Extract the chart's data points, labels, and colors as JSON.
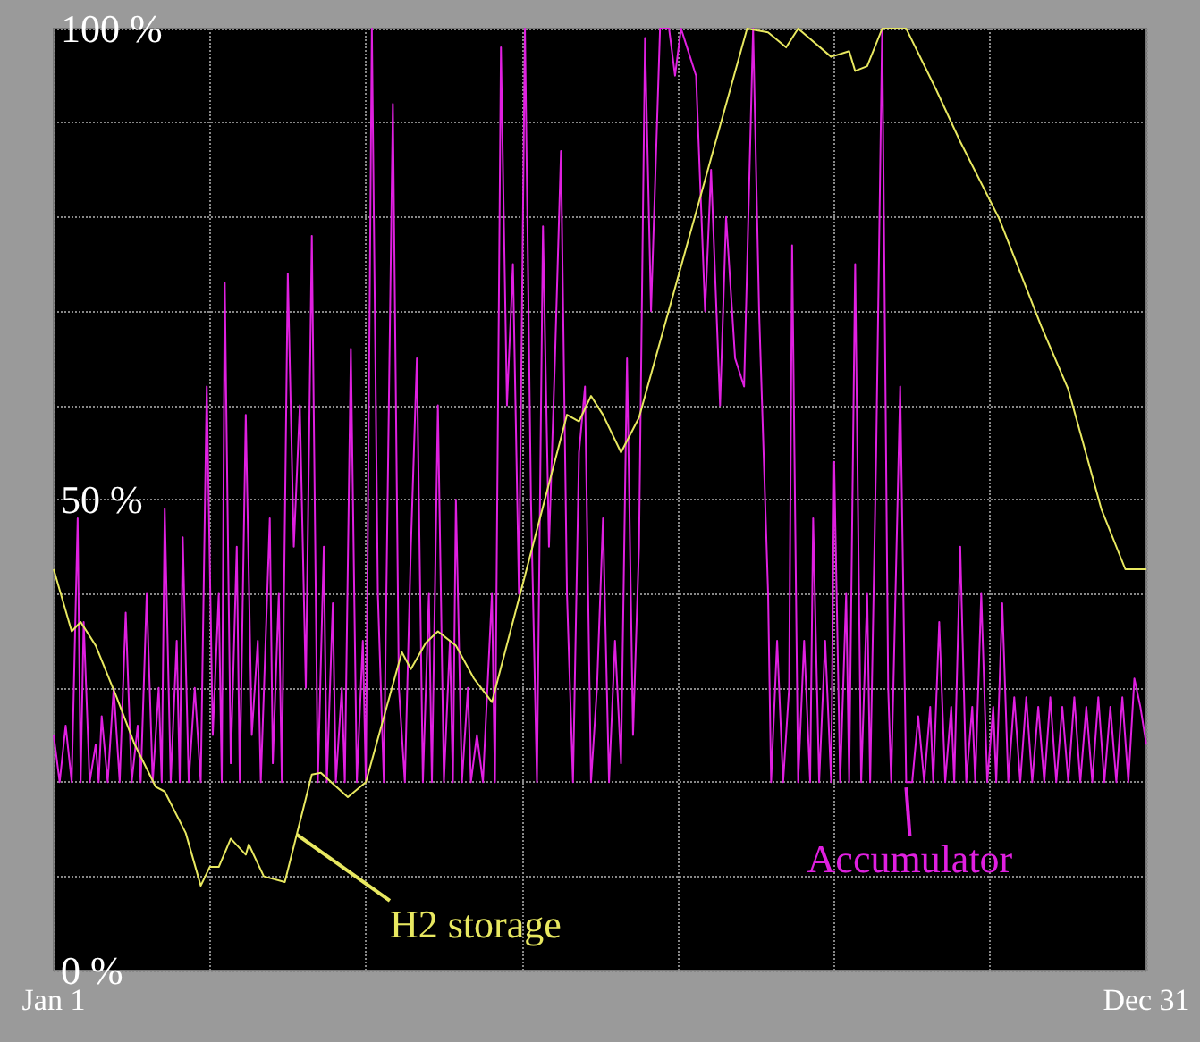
{
  "chart_data": {
    "type": "line",
    "xlim": [
      "--01-01",
      "--12-31"
    ],
    "xticks": [
      {
        "value": "--01-01",
        "label": "Jan 1"
      },
      {
        "value": "--02-22",
        "label": null
      },
      {
        "value": "--04-15",
        "label": null
      },
      {
        "value": "--06-06",
        "label": null
      },
      {
        "value": "--07-28",
        "label": null
      },
      {
        "value": "--09-18",
        "label": null
      },
      {
        "value": "--11-09",
        "label": null
      },
      {
        "value": "--12-31",
        "label": "Dec 31"
      }
    ],
    "ylim": [
      0,
      100
    ],
    "yticks": [
      {
        "value": 0,
        "label": "0 %"
      },
      {
        "value": 10,
        "label": null
      },
      {
        "value": 20,
        "label": null
      },
      {
        "value": 30,
        "label": null
      },
      {
        "value": 40,
        "label": null
      },
      {
        "value": 50,
        "label": "50 %"
      },
      {
        "value": 60,
        "label": null
      },
      {
        "value": 70,
        "label": null
      },
      {
        "value": 80,
        "label": null
      },
      {
        "value": 90,
        "label": null
      },
      {
        "value": 100,
        "label": "100 %"
      }
    ],
    "grid": true,
    "annotations": [
      {
        "text": "H2 storage",
        "x": "--03-23",
        "y": 15
      },
      {
        "text": "Accumulator",
        "x": "--10-12",
        "y": 20
      }
    ],
    "series": [
      {
        "color": "#e8e860",
        "x": [
          "--01-01",
          "--01-07",
          "--01-10",
          "--01-15",
          "--01-22",
          "--01-28",
          "--02-04",
          "--02-07",
          "--02-14",
          "--02-19",
          "--02-22",
          "--02-25",
          "--03-01",
          "--03-06",
          "--03-07",
          "--03-12",
          "--03-19",
          "--03-28",
          "--03-31",
          "--04-09",
          "--04-15",
          "--04-27",
          "--04-30",
          "--05-05",
          "--05-09",
          "--05-15",
          "--05-21",
          "--05-27",
          "--06-21",
          "--06-25",
          "--06-29",
          "--07-03",
          "--07-09",
          "--07-15",
          "--08-20",
          "--08-27",
          "--09-02",
          "--09-06",
          "--09-17",
          "--09-23",
          "--09-25",
          "--09-29",
          "--10-04",
          "--10-12",
          "--10-22",
          "--10-30",
          "--11-12",
          "--11-26",
          "--12-05",
          "--12-16",
          "--12-24",
          "--12-31"
        ],
        "values": [
          42.6,
          36,
          37,
          34.5,
          29,
          24,
          19.5,
          19,
          14.6,
          9,
          11,
          11,
          14,
          12.3,
          13.4,
          10,
          9.4,
          20.8,
          21,
          18.4,
          20,
          33.8,
          32,
          34.8,
          36,
          34.5,
          31,
          28.5,
          59,
          58.3,
          61,
          59,
          55,
          58.7,
          100,
          99.6,
          98,
          100,
          97,
          97.6,
          95.5,
          96,
          100,
          100,
          93.5,
          88,
          79.8,
          68.4,
          61.7,
          49,
          42.6,
          42.6
        ]
      },
      {
        "color": "#e020e0",
        "x": [
          "--01-01",
          "--01-03",
          "--01-05",
          "--01-07",
          "--01-09",
          "--01-10",
          "--01-11",
          "--01-13",
          "--01-15",
          "--01-16",
          "--01-17",
          "--01-19",
          "--01-21",
          "--01-23",
          "--01-25",
          "--01-27",
          "--01-29",
          "--01-30",
          "--02-01",
          "--02-03",
          "--02-05",
          "--02-06",
          "--02-07",
          "--02-09",
          "--02-11",
          "--02-12",
          "--02-13",
          "--02-15",
          "--02-17",
          "--02-19",
          "--02-21",
          "--02-23",
          "--02-25",
          "--02-26",
          "--02-27",
          "--03-01",
          "--03-03",
          "--03-04",
          "--03-06",
          "--03-08",
          "--03-10",
          "--03-11",
          "--03-14",
          "--03-15",
          "--03-17",
          "--03-18",
          "--03-20",
          "--03-22",
          "--03-24",
          "--03-26",
          "--03-28",
          "--03-30",
          "--04-01",
          "--04-02",
          "--04-04",
          "--04-05",
          "--04-07",
          "--04-08",
          "--04-10",
          "--04-12",
          "--04-14",
          "--04-15",
          "--04-17",
          "--04-19",
          "--04-21",
          "--04-24",
          "--04-26",
          "--04-28",
          "--04-30",
          "--05-02",
          "--05-04",
          "--05-06",
          "--05-07",
          "--05-09",
          "--05-11",
          "--05-13",
          "--05-14",
          "--05-15",
          "--05-17",
          "--05-19",
          "--05-20",
          "--05-22",
          "--05-24",
          "--05-27",
          "--05-28",
          "--05-30",
          "--06-01",
          "--06-03",
          "--06-05",
          "--06-07",
          "--06-09",
          "--06-11",
          "--06-13",
          "--06-15",
          "--06-17",
          "--06-19",
          "--06-21",
          "--06-23",
          "--06-25",
          "--06-27",
          "--06-29",
          "--07-01",
          "--07-03",
          "--07-05",
          "--07-07",
          "--07-09",
          "--07-11",
          "--07-13",
          "--07-15",
          "--07-17",
          "--07-19",
          "--07-22",
          "--07-25",
          "--07-27",
          "--07-29",
          "--08-01",
          "--08-03",
          "--08-06",
          "--08-08",
          "--08-11",
          "--08-13",
          "--08-16",
          "--08-19",
          "--08-22",
          "--08-24",
          "--08-27",
          "--08-28",
          "--08-30",
          "--09-01",
          "--09-03",
          "--09-04",
          "--09-06",
          "--09-08",
          "--09-10",
          "--09-11",
          "--09-13",
          "--09-15",
          "--09-17",
          "--09-18",
          "--09-20",
          "--09-22",
          "--09-23",
          "--09-25",
          "--09-27",
          "--09-29",
          "--09-30",
          "--10-02",
          "--10-04",
          "--10-06",
          "--10-07",
          "--10-10",
          "--10-12",
          "--10-14",
          "--10-16",
          "--10-18",
          "--10-20",
          "--10-21",
          "--10-23",
          "--10-25",
          "--10-27",
          "--10-28",
          "--10-30",
          "--11-01",
          "--11-03",
          "--11-04",
          "--11-06",
          "--11-08",
          "--11-10",
          "--11-11",
          "--11-13",
          "--11-15",
          "--11-17",
          "--11-19",
          "--11-21",
          "--11-23",
          "--11-25",
          "--11-27",
          "--11-29",
          "--12-01",
          "--12-03",
          "--12-05",
          "--12-07",
          "--12-09",
          "--12-11",
          "--12-13",
          "--12-15",
          "--12-17",
          "--12-19",
          "--12-21",
          "--12-23",
          "--12-25",
          "--12-27",
          "--12-29",
          "--12-31"
        ],
        "values": [
          25,
          20,
          26,
          20,
          48,
          20,
          37,
          20,
          24,
          20,
          27,
          20,
          30,
          20,
          38,
          20,
          26,
          20,
          40,
          20,
          30,
          20,
          49,
          20,
          35,
          20,
          46,
          20,
          30,
          20,
          62,
          25,
          40,
          20,
          73,
          22,
          45,
          20,
          59,
          25,
          35,
          20,
          48,
          22,
          40,
          20,
          74,
          45,
          60,
          30,
          78,
          20,
          45,
          20,
          39,
          20,
          30,
          20,
          66,
          20,
          35,
          20,
          100,
          40,
          20,
          92,
          30,
          20,
          45,
          65,
          20,
          40,
          20,
          60,
          20,
          35,
          20,
          50,
          20,
          30,
          20,
          25,
          20,
          40,
          20,
          98,
          60,
          75,
          40,
          100,
          50,
          20,
          79,
          45,
          65,
          87,
          40,
          20,
          55,
          62,
          20,
          30,
          48,
          20,
          35,
          22,
          65,
          25,
          45,
          99,
          70,
          100,
          100,
          95,
          100,
          97,
          95,
          70,
          85,
          60,
          80,
          65,
          62,
          100,
          70,
          40,
          20,
          35,
          20,
          30,
          77,
          20,
          35,
          20,
          48,
          20,
          35,
          20,
          54,
          20,
          40,
          20,
          75,
          20,
          40,
          20,
          55,
          100,
          30,
          20,
          62,
          20,
          20,
          27,
          20,
          28,
          20,
          37,
          20,
          28,
          20,
          45,
          20,
          28,
          20,
          40,
          20,
          28,
          20,
          39,
          20,
          29,
          20,
          29,
          20,
          28,
          20,
          29,
          20,
          28,
          20,
          29,
          20,
          28,
          20,
          29,
          20,
          28,
          20,
          29,
          20,
          31,
          28,
          24
        ]
      }
    ]
  }
}
